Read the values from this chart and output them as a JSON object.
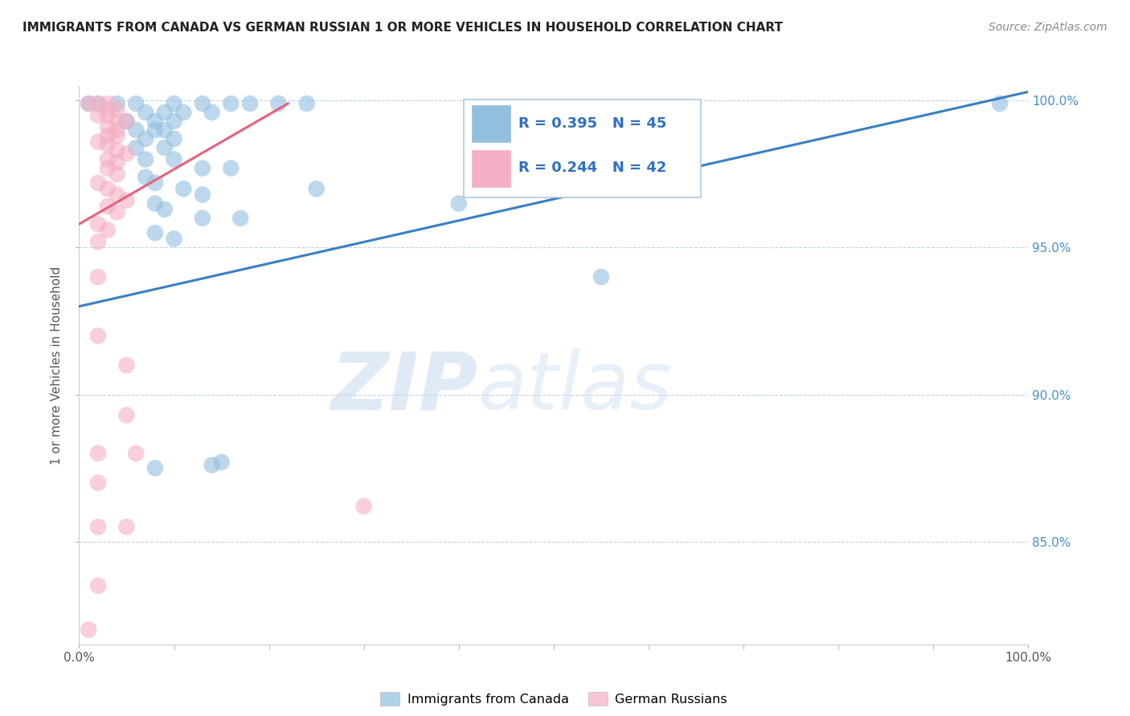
{
  "title": "IMMIGRANTS FROM CANADA VS GERMAN RUSSIAN 1 OR MORE VEHICLES IN HOUSEHOLD CORRELATION CHART",
  "source": "Source: ZipAtlas.com",
  "ylabel": "1 or more Vehicles in Household",
  "xlim": [
    0.0,
    1.0
  ],
  "ylim": [
    0.815,
    1.005
  ],
  "x_tick_labels": [
    "0.0%",
    "100.0%"
  ],
  "y_tick_labels": [
    "85.0%",
    "90.0%",
    "95.0%",
    "100.0%"
  ],
  "y_tick_values": [
    0.85,
    0.9,
    0.95,
    1.0
  ],
  "legend_labels": [
    "Immigrants from Canada",
    "German Russians"
  ],
  "R_blue": "0.395",
  "N_blue": "45",
  "R_pink": "0.244",
  "N_pink": "42",
  "blue_color": "#92bfe0",
  "pink_color": "#f4afc4",
  "trend_blue": "#3a7fc1",
  "trend_pink": "#e8607a",
  "blue_scatter": [
    [
      0.01,
      0.999
    ],
    [
      0.02,
      0.999
    ],
    [
      0.04,
      0.999
    ],
    [
      0.06,
      0.999
    ],
    [
      0.1,
      0.999
    ],
    [
      0.13,
      0.999
    ],
    [
      0.16,
      0.999
    ],
    [
      0.18,
      0.999
    ],
    [
      0.21,
      0.999
    ],
    [
      0.24,
      0.999
    ],
    [
      0.07,
      0.996
    ],
    [
      0.09,
      0.996
    ],
    [
      0.11,
      0.996
    ],
    [
      0.14,
      0.996
    ],
    [
      0.05,
      0.993
    ],
    [
      0.08,
      0.993
    ],
    [
      0.1,
      0.993
    ],
    [
      0.06,
      0.99
    ],
    [
      0.08,
      0.99
    ],
    [
      0.09,
      0.99
    ],
    [
      0.07,
      0.987
    ],
    [
      0.1,
      0.987
    ],
    [
      0.06,
      0.984
    ],
    [
      0.09,
      0.984
    ],
    [
      0.07,
      0.98
    ],
    [
      0.1,
      0.98
    ],
    [
      0.13,
      0.977
    ],
    [
      0.16,
      0.977
    ],
    [
      0.07,
      0.974
    ],
    [
      0.08,
      0.972
    ],
    [
      0.11,
      0.97
    ],
    [
      0.13,
      0.968
    ],
    [
      0.08,
      0.965
    ],
    [
      0.09,
      0.963
    ],
    [
      0.13,
      0.96
    ],
    [
      0.17,
      0.96
    ],
    [
      0.08,
      0.955
    ],
    [
      0.1,
      0.953
    ],
    [
      0.25,
      0.97
    ],
    [
      0.4,
      0.965
    ],
    [
      0.55,
      0.94
    ],
    [
      0.97,
      0.999
    ],
    [
      0.15,
      0.877
    ],
    [
      0.14,
      0.876
    ],
    [
      0.08,
      0.875
    ]
  ],
  "pink_scatter": [
    [
      0.01,
      0.999
    ],
    [
      0.02,
      0.999
    ],
    [
      0.03,
      0.999
    ],
    [
      0.03,
      0.997
    ],
    [
      0.04,
      0.997
    ],
    [
      0.02,
      0.995
    ],
    [
      0.03,
      0.995
    ],
    [
      0.04,
      0.993
    ],
    [
      0.05,
      0.993
    ],
    [
      0.03,
      0.991
    ],
    [
      0.04,
      0.99
    ],
    [
      0.03,
      0.988
    ],
    [
      0.04,
      0.988
    ],
    [
      0.02,
      0.986
    ],
    [
      0.03,
      0.985
    ],
    [
      0.04,
      0.983
    ],
    [
      0.05,
      0.982
    ],
    [
      0.03,
      0.98
    ],
    [
      0.04,
      0.979
    ],
    [
      0.03,
      0.977
    ],
    [
      0.04,
      0.975
    ],
    [
      0.02,
      0.972
    ],
    [
      0.03,
      0.97
    ],
    [
      0.04,
      0.968
    ],
    [
      0.05,
      0.966
    ],
    [
      0.03,
      0.964
    ],
    [
      0.04,
      0.962
    ],
    [
      0.02,
      0.958
    ],
    [
      0.03,
      0.956
    ],
    [
      0.02,
      0.952
    ],
    [
      0.02,
      0.94
    ],
    [
      0.02,
      0.92
    ],
    [
      0.05,
      0.91
    ],
    [
      0.05,
      0.893
    ],
    [
      0.02,
      0.88
    ],
    [
      0.06,
      0.88
    ],
    [
      0.02,
      0.87
    ],
    [
      0.02,
      0.855
    ],
    [
      0.05,
      0.855
    ],
    [
      0.3,
      0.862
    ],
    [
      0.02,
      0.835
    ],
    [
      0.01,
      0.82
    ]
  ],
  "blue_trend_x": [
    0.0,
    1.0
  ],
  "blue_trend_y": [
    0.93,
    1.003
  ],
  "pink_trend_x": [
    0.0,
    0.22
  ],
  "pink_trend_y": [
    0.958,
    0.999
  ]
}
